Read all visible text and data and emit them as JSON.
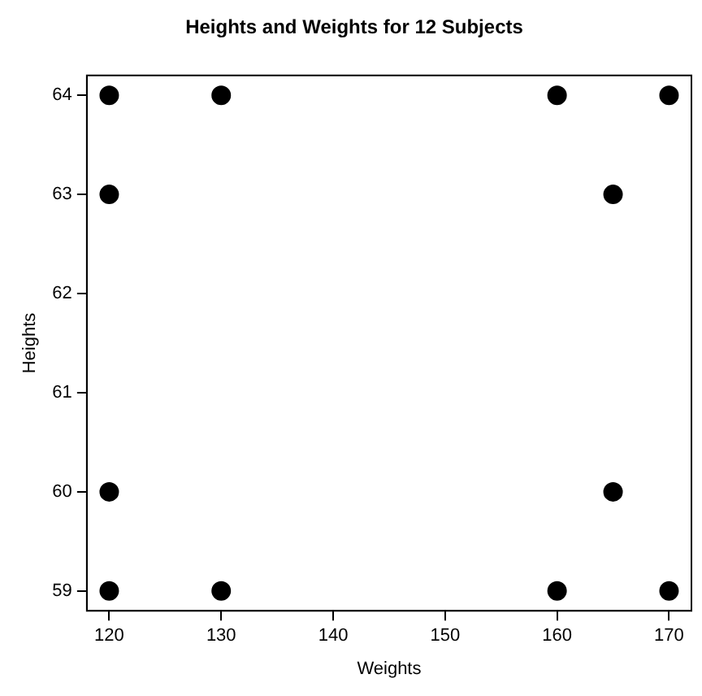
{
  "chart_data": {
    "type": "scatter",
    "title": "Heights and Weights for 12 Subjects",
    "xlabel": "Weights",
    "ylabel": "Heights",
    "x": [
      120,
      130,
      160,
      170,
      120,
      165,
      120,
      165,
      120,
      130,
      160,
      170
    ],
    "values": [
      64,
      64,
      64,
      64,
      63,
      63,
      60,
      60,
      59,
      59,
      59,
      59
    ],
    "color": "#000000",
    "marker": "circle",
    "grid": false,
    "legend": false,
    "xlim": [
      118,
      172
    ],
    "ylim": [
      58.8,
      64.2
    ],
    "xticks": [
      120,
      130,
      140,
      150,
      160,
      170
    ],
    "yticks": [
      59,
      60,
      61,
      62,
      63,
      64
    ]
  }
}
